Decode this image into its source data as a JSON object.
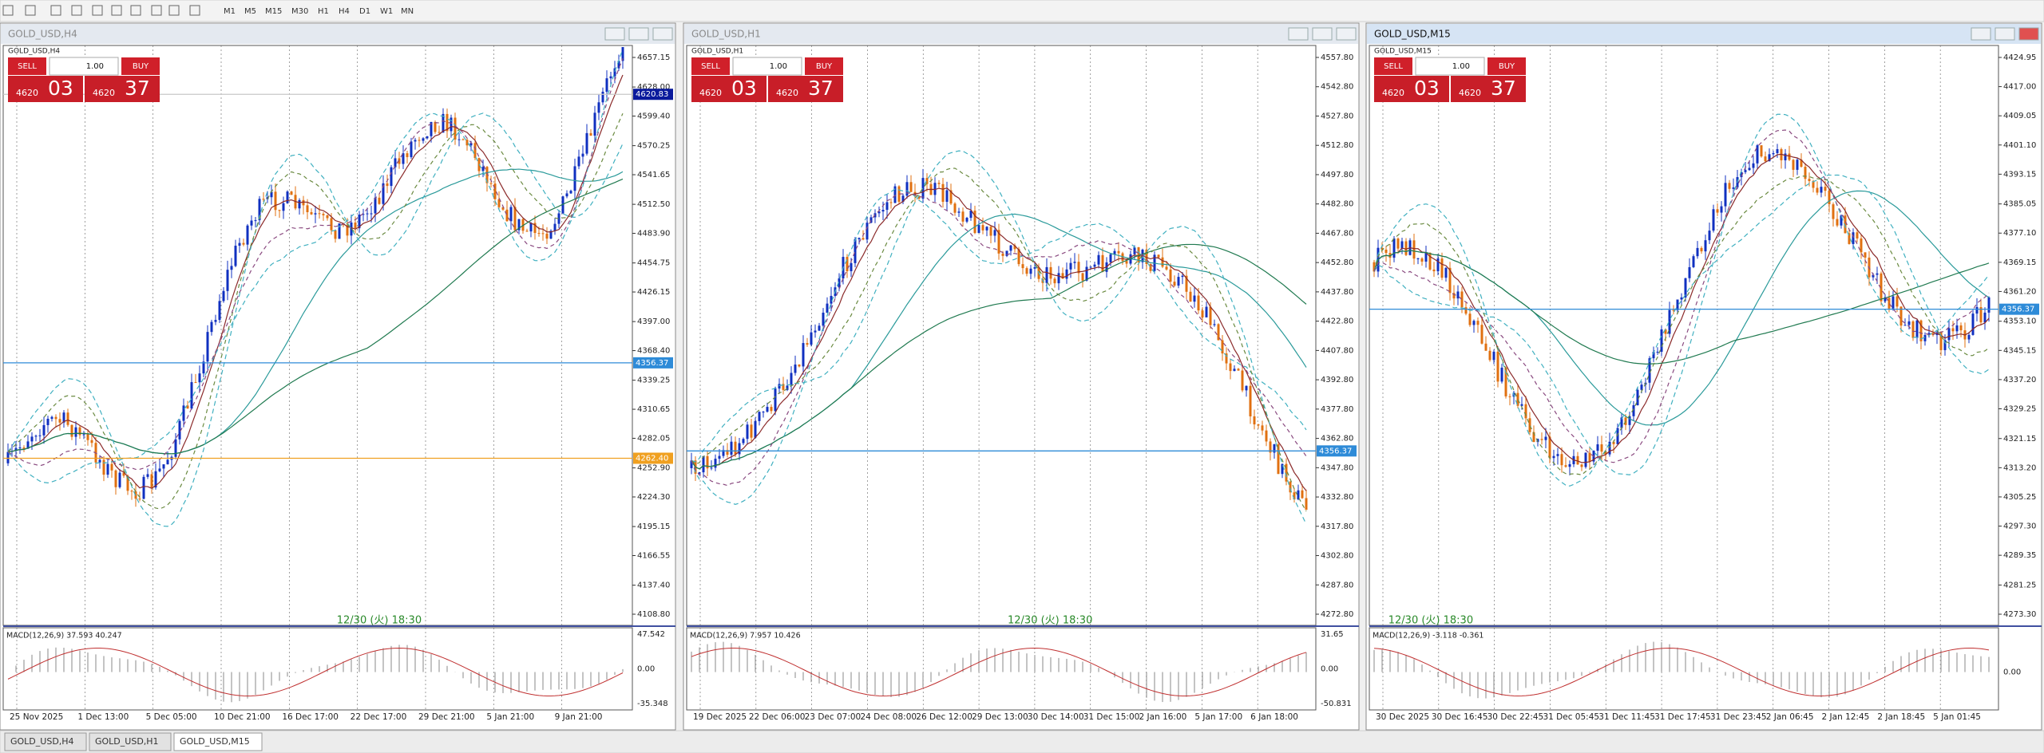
{
  "toolbar": {
    "timeframes": [
      "M1",
      "M5",
      "M15",
      "M30",
      "H1",
      "H4",
      "D1",
      "W1",
      "MN"
    ]
  },
  "windows": [
    {
      "title": "GOLD_USD,H4",
      "symbol_label": "GOLD_USD,H4",
      "sell": "SELL",
      "buy": "BUY",
      "lot": "1.00",
      "bid_small": "4620",
      "bid_big": "03",
      "ask_small": "4620",
      "ask_big": "37",
      "price_labels": [
        "4657.15",
        "4628.00",
        "4599.40",
        "4570.25",
        "4541.65",
        "4512.50",
        "4483.90",
        "4454.75",
        "4426.15",
        "4397.00",
        "4368.40",
        "4339.25",
        "4310.65",
        "4282.05",
        "4252.90",
        "4224.30",
        "4195.15",
        "4166.55",
        "4137.40",
        "4108.80"
      ],
      "lines": [
        {
          "label": "4620.83",
          "color": "#0a1a9c"
        },
        {
          "label": "4356.37",
          "color": "#2e8bd8"
        },
        {
          "label": "4262.40",
          "color": "#f0a020"
        }
      ],
      "macd_label": "MACD(12,26,9) 37.593 40.247",
      "macd_axis": [
        "47.542",
        "0.00",
        "-35.348"
      ],
      "dates": [
        "25 Nov 2025",
        "1 Dec 13:00",
        "5 Dec 05:00",
        "10 Dec 21:00",
        "16 Dec 17:00",
        "22 Dec 17:00",
        "29 Dec 21:00",
        "5 Jan 21:00",
        "9 Jan 21:00"
      ],
      "time_marker": "12/30 (火) 18:30"
    },
    {
      "title": "GOLD_USD,H1",
      "symbol_label": "GOLD_USD,H1",
      "sell": "SELL",
      "buy": "BUY",
      "lot": "1.00",
      "bid_small": "4620",
      "bid_big": "03",
      "ask_small": "4620",
      "ask_big": "37",
      "price_labels": [
        "4557.80",
        "4542.80",
        "4527.80",
        "4512.80",
        "4497.80",
        "4482.80",
        "4467.80",
        "4452.80",
        "4437.80",
        "4422.80",
        "4407.80",
        "4392.80",
        "4377.80",
        "4362.80",
        "4347.80",
        "4332.80",
        "4317.80",
        "4302.80",
        "4287.80",
        "4272.80"
      ],
      "lines": [
        {
          "label": "4356.37",
          "color": "#2e8bd8"
        }
      ],
      "macd_label": "MACD(12,26,9) 7.957 10.426",
      "macd_axis": [
        "31.65",
        "0.00",
        "-50.831"
      ],
      "dates": [
        "19 Dec 2025",
        "22 Dec 06:00",
        "23 Dec 07:00",
        "24 Dec 08:00",
        "26 Dec 12:00",
        "29 Dec 13:00",
        "30 Dec 14:00",
        "31 Dec 15:00",
        "2 Jan 16:00",
        "5 Jan 17:00",
        "6 Jan 18:00"
      ],
      "time_marker": "12/30 (火) 18:30"
    },
    {
      "title": "GOLD_USD,M15",
      "symbol_label": "GOLD_USD,M15",
      "sell": "SELL",
      "buy": "BUY",
      "lot": "1.00",
      "bid_small": "4620",
      "bid_big": "03",
      "ask_small": "4620",
      "ask_big": "37",
      "price_labels": [
        "4424.95",
        "4417.00",
        "4409.05",
        "4401.10",
        "4393.15",
        "4385.05",
        "4377.10",
        "4369.15",
        "4361.20",
        "4353.10",
        "4345.15",
        "4337.20",
        "4329.25",
        "4321.15",
        "4313.20",
        "4305.25",
        "4297.30",
        "4289.35",
        "4281.25",
        "4273.30"
      ],
      "lines": [
        {
          "label": "4356.37",
          "color": "#2e8bd8"
        }
      ],
      "macd_label": "MACD(12,26,9) -3.118 -0.361",
      "macd_axis": [
        "0.00"
      ],
      "dates": [
        "30 Dec 2025",
        "30 Dec 16:45",
        "30 Dec 22:45",
        "31 Dec 05:45",
        "31 Dec 11:45",
        "31 Dec 17:45",
        "31 Dec 23:45",
        "2 Jan 06:45",
        "2 Jan 12:45",
        "2 Jan 18:45",
        "5 Jan 01:45"
      ],
      "time_marker": "12/30 (火) 18:30"
    }
  ],
  "tabs": [
    "GOLD_USD,H4",
    "GOLD_USD,H1",
    "GOLD_USD,M15"
  ]
}
